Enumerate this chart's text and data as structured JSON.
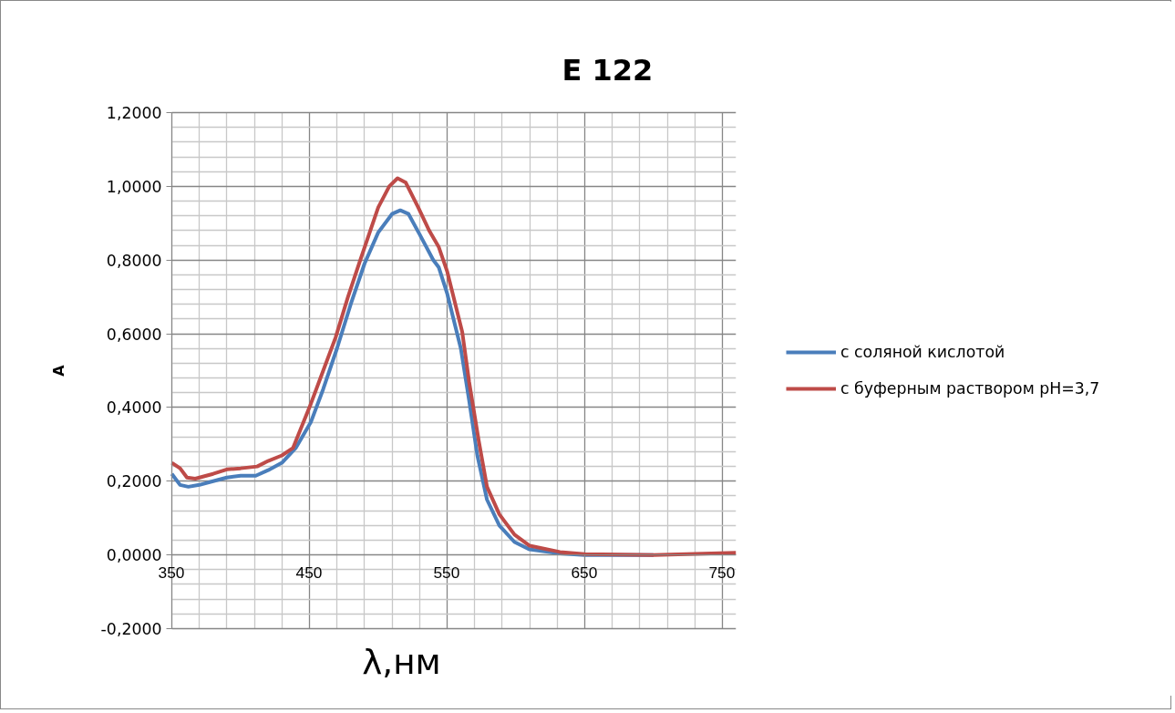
{
  "chart_data": {
    "type": "line",
    "title": "E 122",
    "xlabel": "λ,нм",
    "ylabel": "A",
    "xlim": [
      350,
      760
    ],
    "ylim": [
      -0.2,
      1.2
    ],
    "xticks": [
      350,
      450,
      550,
      650,
      750
    ],
    "yticks": [
      {
        "value": -0.2,
        "label": "-0,2000"
      },
      {
        "value": 0,
        "label": "0,0000"
      },
      {
        "value": 0.2,
        "label": "0,2000"
      },
      {
        "value": 0.4,
        "label": "0,4000"
      },
      {
        "value": 0.6,
        "label": "0,6000"
      },
      {
        "value": 0.8,
        "label": "0,8000"
      },
      {
        "value": 1.0,
        "label": "1,0000"
      },
      {
        "value": 1.2,
        "label": "1,2000"
      }
    ],
    "grid": true,
    "legend": "right",
    "marker": "none",
    "line_style": "solid",
    "series": [
      {
        "name": "с соляной кислотой",
        "color": "#4a7ebb",
        "x": [
          350,
          356,
          362,
          370,
          380,
          390,
          400,
          411,
          420,
          430,
          440,
          451,
          460,
          470,
          480,
          490,
          500,
          510,
          516,
          522,
          530,
          540,
          544,
          550,
          560,
          566,
          572,
          579,
          588,
          599,
          610,
          632,
          650,
          700
        ],
        "values": [
          0.22,
          0.19,
          0.185,
          0.19,
          0.2,
          0.21,
          0.215,
          0.215,
          0.23,
          0.25,
          0.29,
          0.36,
          0.45,
          0.56,
          0.68,
          0.79,
          0.875,
          0.925,
          0.935,
          0.925,
          0.87,
          0.8,
          0.78,
          0.71,
          0.56,
          0.42,
          0.27,
          0.15,
          0.08,
          0.035,
          0.015,
          0.004,
          0.0,
          0.0
        ]
      },
      {
        "name": "с буферным раствором pH=3,7",
        "color": "#be4b48",
        "x": [
          350,
          356,
          361,
          367,
          380,
          390,
          400,
          412,
          420,
          430,
          438,
          451,
          460,
          469,
          478,
          486,
          500,
          508,
          514,
          520,
          529,
          537,
          544,
          550,
          561,
          566,
          573,
          579,
          588,
          599,
          610,
          632,
          650,
          700,
          730,
          760
        ],
        "values": [
          0.25,
          0.235,
          0.21,
          0.207,
          0.22,
          0.232,
          0.235,
          0.24,
          0.255,
          0.27,
          0.29,
          0.41,
          0.5,
          0.59,
          0.7,
          0.79,
          0.943,
          1.0,
          1.022,
          1.01,
          0.943,
          0.88,
          0.835,
          0.77,
          0.605,
          0.47,
          0.31,
          0.185,
          0.11,
          0.055,
          0.025,
          0.008,
          0.002,
          0.0,
          0.003,
          0.006
        ]
      }
    ]
  }
}
